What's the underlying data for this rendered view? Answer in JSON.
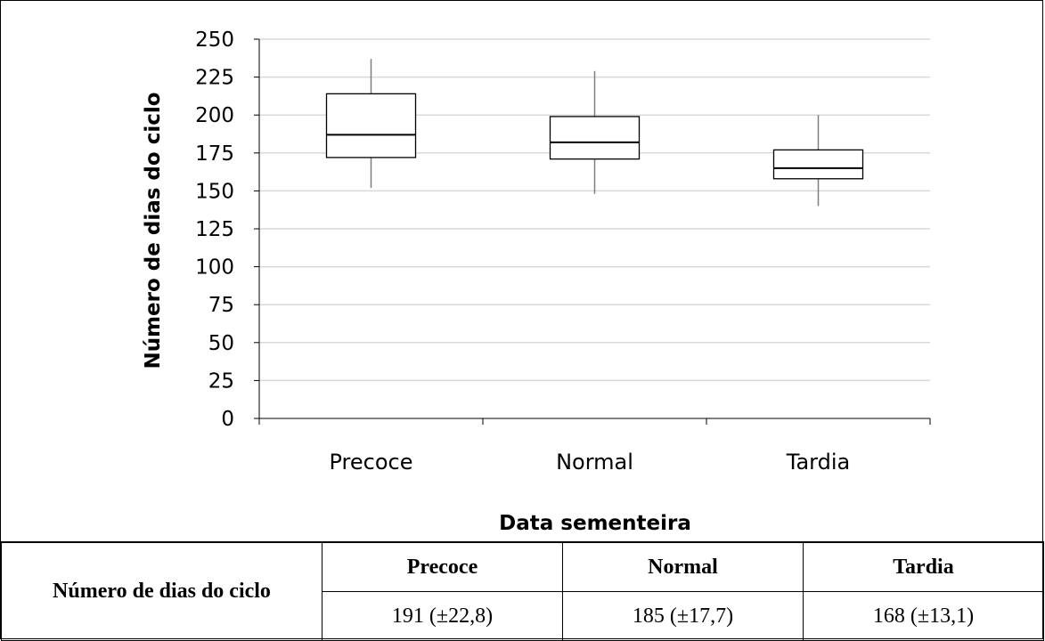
{
  "chart_data": {
    "type": "boxplot",
    "ylabel": "Número de dias do ciclo",
    "xlabel": "Data sementeira",
    "ylim": [
      0,
      250
    ],
    "yticks": [
      "0",
      "25",
      "50",
      "75",
      "100",
      "125",
      "150",
      "175",
      "200",
      "225",
      "250"
    ],
    "ytick_values": [
      0,
      25,
      50,
      75,
      100,
      125,
      150,
      175,
      200,
      225,
      250
    ],
    "grid": true,
    "categories": [
      "Precoce",
      "Normal",
      "Tardia"
    ],
    "boxes": [
      {
        "category": "Precoce",
        "min": 152,
        "q1": 172,
        "median": 187,
        "q3": 214,
        "max": 237
      },
      {
        "category": "Normal",
        "min": 148,
        "q1": 171,
        "median": 182,
        "q3": 199,
        "max": 229
      },
      {
        "category": "Tardia",
        "min": 140,
        "q1": 158,
        "median": 165,
        "q3": 177,
        "max": 200
      }
    ]
  },
  "table": {
    "row_header": "Número de dias do ciclo",
    "columns": [
      "Precoce",
      "Normal",
      "Tardia"
    ],
    "values": [
      "191 (±22,8)",
      "185 (±17,7)",
      "168 (±13,1)"
    ]
  }
}
